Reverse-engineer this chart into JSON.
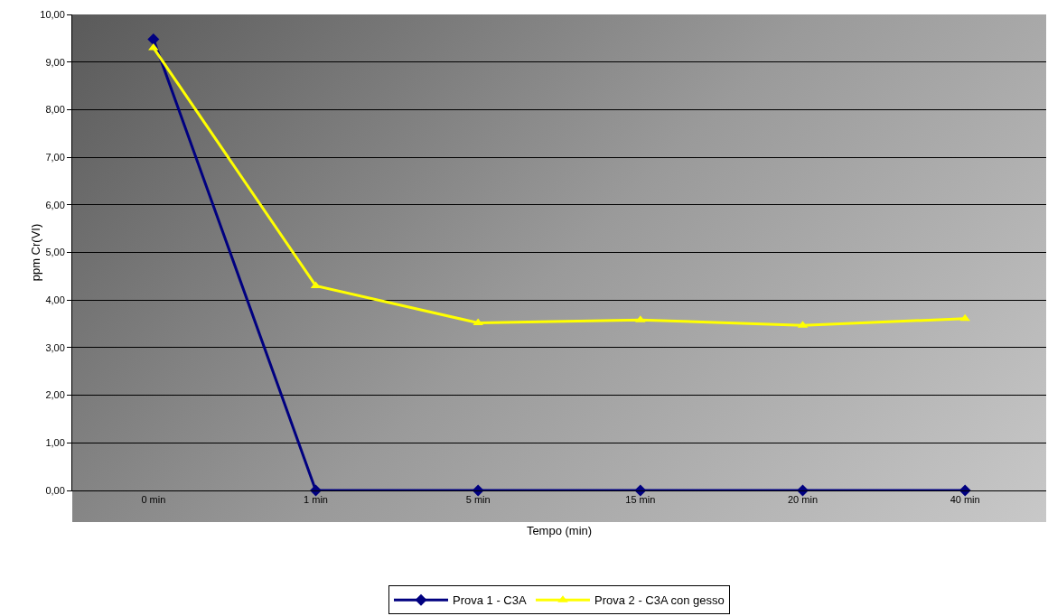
{
  "chart_data": {
    "type": "line",
    "xlabel": "Tempo (min)",
    "ylabel": "ppm Cr(VI)",
    "categories": [
      "0 min",
      "1 min",
      "5 min",
      "15 min",
      "20 min",
      "40 min"
    ],
    "series": [
      {
        "name": "Prova 1 - C3A",
        "color": "#000080",
        "values": [
          9.48,
          0,
          0,
          0,
          0,
          0
        ],
        "marker": "diamond"
      },
      {
        "name": "Prova 2 - C3A con gesso",
        "color": "#ffff00",
        "values": [
          9.3,
          4.3,
          3.52,
          3.58,
          3.47,
          3.61
        ],
        "marker": "triangle"
      }
    ],
    "ylim": [
      0,
      10
    ],
    "yticks": [
      {
        "value": 0,
        "label": "0,00"
      },
      {
        "value": 1,
        "label": "1,00"
      },
      {
        "value": 2,
        "label": "2,00"
      },
      {
        "value": 3,
        "label": "3,00"
      },
      {
        "value": 4,
        "label": "4,00"
      },
      {
        "value": 5,
        "label": "5,00"
      },
      {
        "value": 6,
        "label": "6,00"
      },
      {
        "value": 7,
        "label": "7,00"
      },
      {
        "value": 8,
        "label": "8,00"
      },
      {
        "value": 9,
        "label": "9,00"
      },
      {
        "value": 10,
        "label": "10,00"
      }
    ],
    "grid": "y",
    "legend": "bottom",
    "line_style": "solid"
  }
}
